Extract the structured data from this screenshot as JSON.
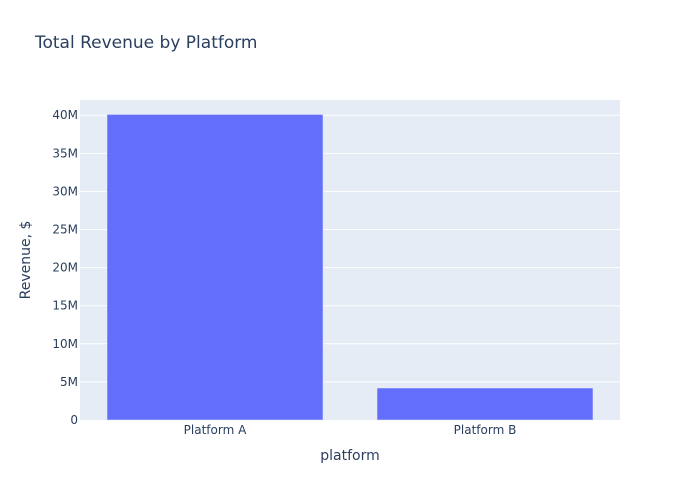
{
  "chart_data": {
    "type": "bar",
    "title": "Total Revenue by Platform",
    "xlabel": "platform",
    "ylabel": "Revenue, $",
    "categories": [
      "Platform A",
      "Platform B"
    ],
    "series": [
      {
        "values": [
          40100000,
          4200000
        ]
      }
    ],
    "ylim": [
      0,
      42000000
    ],
    "yticks": [
      0,
      5000000,
      10000000,
      15000000,
      20000000,
      25000000,
      30000000,
      35000000,
      40000000
    ],
    "ytick_labels": [
      "0",
      "5M",
      "10M",
      "15M",
      "20M",
      "25M",
      "30M",
      "35M",
      "40M"
    ],
    "grid": true,
    "colors": {
      "bar": "#636efa",
      "plot_bg": "#e5ecf6",
      "grid": "#ffffff",
      "text": "#2a3f5f"
    }
  }
}
